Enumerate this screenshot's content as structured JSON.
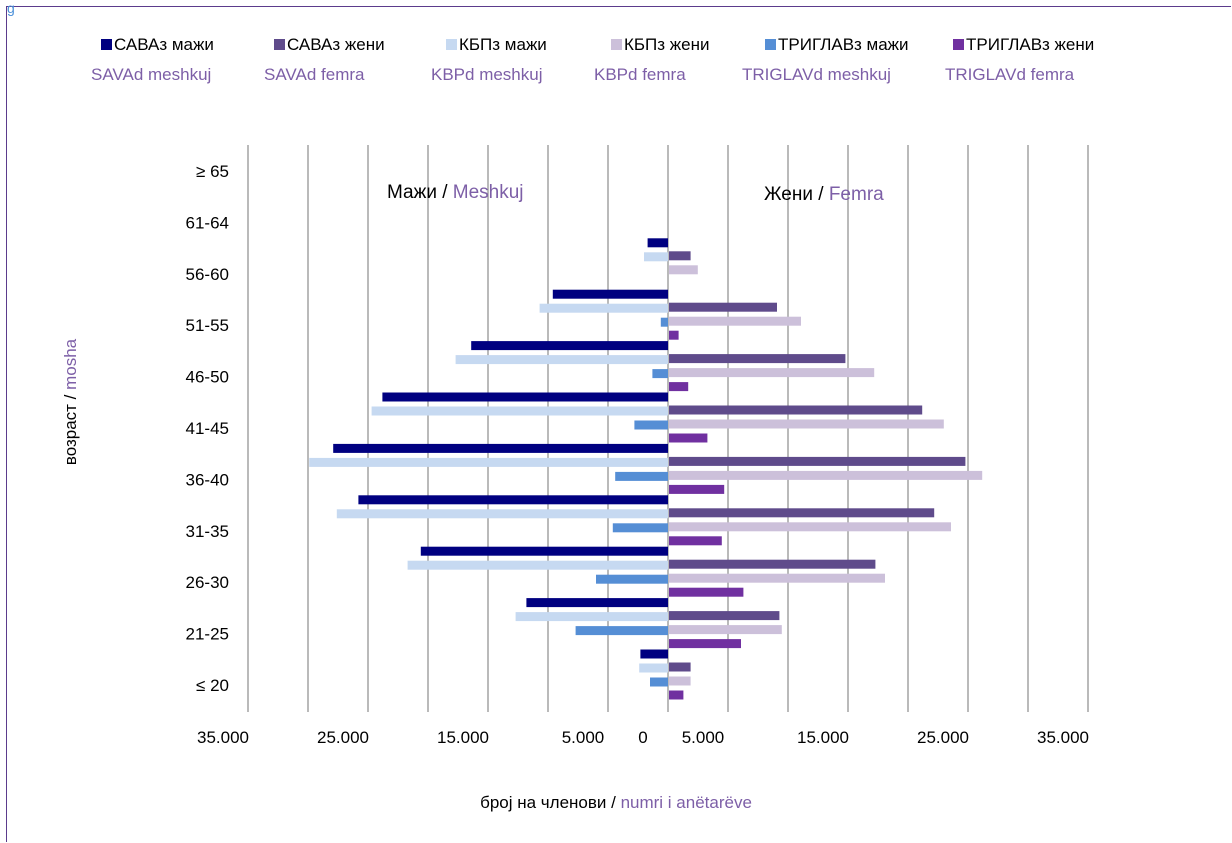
{
  "corner_text": "g",
  "colors": {
    "sava_m": "#000080",
    "sava_f": "#5f4b8b",
    "kbp_m": "#c6d9f1",
    "kbp_f": "#ccc0da",
    "triglav_m": "#558ed5",
    "triglav_f": "#7030a0",
    "grid": "#8c8c8c",
    "albanian_text": "#7d5fa7",
    "frame": "#5b3b8c"
  },
  "chart_data": {
    "type": "bar",
    "orientation": "horizontal-pyramid",
    "categories": [
      "≤ 20",
      "21-25",
      "26-30",
      "31-35",
      "36-40",
      "41-45",
      "46-50",
      "51-55",
      "56-60",
      "61-64",
      "≥ 65"
    ],
    "series": [
      {
        "name": "САВАз мажи",
        "name_sq": "SAVAd meshkuj",
        "side": "male",
        "color_key": "sava_m",
        "values": [
          2300,
          11800,
          20600,
          25800,
          27900,
          23800,
          16400,
          9600,
          1700,
          0,
          0
        ]
      },
      {
        "name": "КБПз мажи",
        "name_sq": "KBPd meshkuj",
        "side": "male",
        "color_key": "kbp_m",
        "values": [
          2400,
          12700,
          21700,
          27600,
          29900,
          24700,
          17700,
          10700,
          2000,
          0,
          0
        ]
      },
      {
        "name": "ТРИГЛАВз мажи",
        "name_sq": "TRIGLAVd meshkuj",
        "side": "male",
        "color_key": "triglav_m",
        "values": [
          1500,
          7700,
          6000,
          4600,
          4400,
          2800,
          1300,
          600,
          0,
          0,
          0
        ]
      },
      {
        "name": "САВАз жени",
        "name_sq": "SAVAd femra",
        "side": "female",
        "color_key": "sava_f",
        "values": [
          1800,
          9200,
          17200,
          22100,
          24700,
          21100,
          14700,
          9000,
          1800,
          0,
          0
        ]
      },
      {
        "name": "КБПз жени",
        "name_sq": "KBPd femra",
        "side": "female",
        "color_key": "kbp_f",
        "values": [
          1800,
          9400,
          18000,
          23500,
          26100,
          22900,
          17100,
          11000,
          2400,
          0,
          0
        ]
      },
      {
        "name": "ТРИГЛАВз жени",
        "name_sq": "TRIGLAVd femra",
        "side": "female",
        "color_key": "triglav_f",
        "values": [
          1200,
          6000,
          6200,
          4400,
          4600,
          3200,
          1600,
          800,
          0,
          0,
          0
        ]
      }
    ],
    "legend": {
      "row1": [
        "САВАз мажи",
        "САВАз жени",
        "КБПз мажи",
        "КБПз жени",
        "ТРИГЛАВз мажи",
        "ТРИГЛАВз жени"
      ],
      "row2": [
        "SAVAd meshkuj",
        "SAVAd femra",
        "KBPd meshkuj",
        "KBPd femra",
        "TRIGLAVd meshkuj",
        "TRIGLAVd femra"
      ],
      "placement": "top"
    },
    "x_ticks": [
      "35.000",
      "25.000",
      "15.000",
      "5.000",
      "0",
      "5.000",
      "15.000",
      "25.000",
      "35.000"
    ],
    "x_tick_values": [
      -35000,
      -25000,
      -15000,
      -5000,
      0,
      5000,
      15000,
      25000,
      35000
    ],
    "xlim": [
      -35000,
      35000
    ],
    "xlabel_mk": "број на членови / ",
    "xlabel_sq": "numri i anëtarëve",
    "ylabel_mk": "возраст / ",
    "ylabel_sq": "mosha",
    "annotations": {
      "male_mk": "Мажи / ",
      "male_sq": "Meshkuj",
      "female_mk": "Жени / ",
      "female_sq": "Femra"
    },
    "grid": "vertical"
  }
}
